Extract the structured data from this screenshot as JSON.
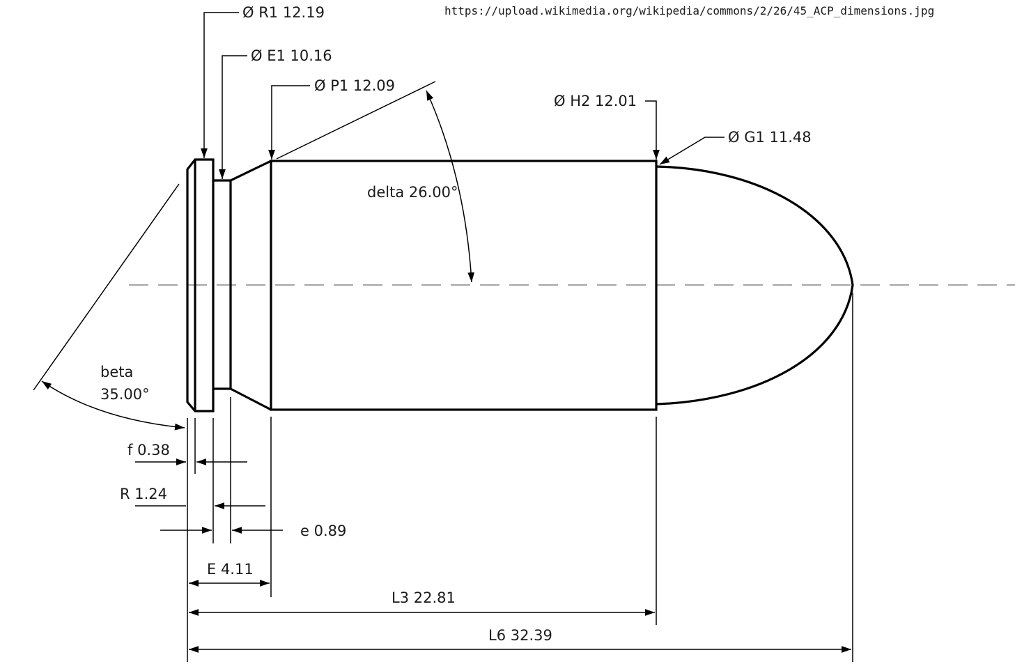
{
  "source_url": "https://upload.wikimedia.org/wikipedia/commons/2/26/45_ACP_dimensions.jpg",
  "dimensions": {
    "r1": "Ø R1  12.19",
    "e1": "Ø E1  10.16",
    "p1": "Ø P1  12.09",
    "h2": "Ø H2  12.01",
    "g1": "Ø G1  11.48",
    "delta": "delta 26.00°",
    "beta_name": "beta",
    "beta_value": "35.00°",
    "f": "f 0.38",
    "r": "R  1.24",
    "e": "e 0.89",
    "big_e": "E 4.11",
    "l3": "L3 22.81",
    "l6": "L6 32.39"
  }
}
